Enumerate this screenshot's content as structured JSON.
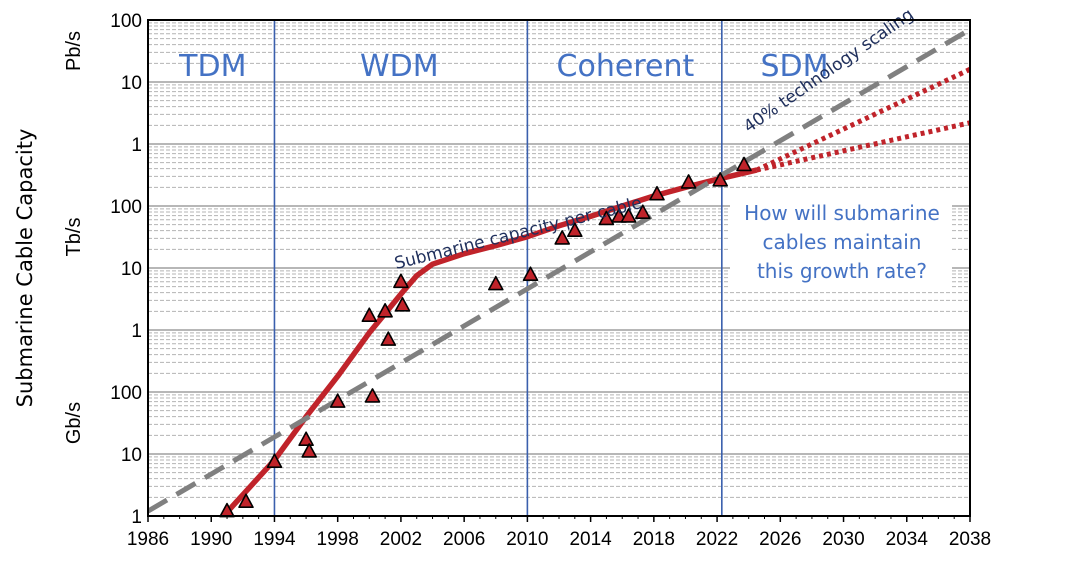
{
  "chart_data": {
    "type": "scatter",
    "ylabel": "Submarine Cable Capacity",
    "y_scale": "log",
    "ylim_gbps": [
      1,
      100000000
    ],
    "xlim": [
      1986,
      2038
    ],
    "x_ticks": [
      1986,
      1990,
      1994,
      1998,
      2002,
      2006,
      2010,
      2014,
      2018,
      2022,
      2026,
      2030,
      2034,
      2038
    ],
    "y_tick_labels": [
      {
        "label": "1",
        "gbps": 1
      },
      {
        "label": "10",
        "gbps": 10
      },
      {
        "label": "100",
        "gbps": 100
      },
      {
        "label": "1",
        "gbps": 1000
      },
      {
        "label": "10",
        "gbps": 10000
      },
      {
        "label": "100",
        "gbps": 100000
      },
      {
        "label": "1",
        "gbps": 1000000
      },
      {
        "label": "10",
        "gbps": 10000000
      },
      {
        "label": "100",
        "gbps": 100000000
      }
    ],
    "unit_labels": [
      {
        "label": "Gb/s",
        "gbps": 31.6
      },
      {
        "label": "Tb/s",
        "gbps": 31600
      },
      {
        "label": "Pb/s",
        "gbps": 31600000
      }
    ],
    "eras": [
      {
        "label": "TDM",
        "x": 1990.1
      },
      {
        "label": "WDM",
        "x": 2001.9
      },
      {
        "label": "Coherent",
        "x": 2016.2
      },
      {
        "label": "SDM",
        "x": 2026.9
      }
    ],
    "era_boundaries": [
      1994,
      2010,
      2022.3
    ],
    "series": [
      {
        "name": "Submarine capacity per cable",
        "style": "solid",
        "color": "#c0232a",
        "points": [
          [
            1991,
            1.15
          ],
          [
            1994,
            8
          ],
          [
            1996,
            40
          ],
          [
            1998,
            180
          ],
          [
            2000,
            900
          ],
          [
            2002,
            3800
          ],
          [
            2003,
            7500
          ],
          [
            2004,
            11500
          ],
          [
            2006,
            17000
          ],
          [
            2008,
            23000
          ],
          [
            2010,
            32000
          ],
          [
            2012,
            48000
          ],
          [
            2014,
            68000
          ],
          [
            2016,
            100000
          ],
          [
            2018,
            145000
          ],
          [
            2020,
            200000
          ],
          [
            2022,
            270000
          ],
          [
            2024.5,
            380000
          ]
        ]
      },
      {
        "name": "40% technology scaling",
        "style": "dashed",
        "color": "#808080",
        "points": [
          [
            1986,
            1.2
          ],
          [
            2038,
            70000000
          ]
        ]
      },
      {
        "name": "projection high",
        "style": "dotted",
        "color": "#c0232a",
        "points": [
          [
            2024.5,
            380000
          ],
          [
            2038,
            16000000
          ]
        ]
      },
      {
        "name": "projection low",
        "style": "dotted",
        "color": "#c0232a",
        "points": [
          [
            2024.5,
            380000
          ],
          [
            2038,
            2200000
          ]
        ]
      }
    ],
    "markers": {
      "shape": "triangle",
      "color": "#c0232a",
      "points": [
        [
          1991,
          1.2
        ],
        [
          1992.2,
          1.7
        ],
        [
          1994,
          7.5
        ],
        [
          1996,
          17
        ],
        [
          1996.2,
          11
        ],
        [
          1998,
          70
        ],
        [
          2000,
          1700
        ],
        [
          2000.2,
          85
        ],
        [
          2001,
          2000
        ],
        [
          2001.2,
          700
        ],
        [
          2002,
          6000
        ],
        [
          2002.1,
          2500
        ],
        [
          2008,
          5500
        ],
        [
          2010.2,
          7800
        ],
        [
          2012.2,
          30000
        ],
        [
          2013,
          40000
        ],
        [
          2015,
          62000
        ],
        [
          2015.8,
          68000
        ],
        [
          2016.4,
          68000
        ],
        [
          2017.3,
          78000
        ],
        [
          2018.2,
          155000
        ],
        [
          2020.2,
          240000
        ],
        [
          2022.2,
          260000
        ],
        [
          2023.7,
          460000
        ]
      ]
    },
    "annotations": [
      {
        "text": "Submarine capacity per cable",
        "x": 2009.5,
        "gbps": 30000
      },
      {
        "text": "40% technology scaling",
        "x": 2024,
        "gbps": 1500000
      }
    ],
    "question_lines": [
      "How will submarine",
      "cables maintain",
      "this growth rate?"
    ]
  }
}
